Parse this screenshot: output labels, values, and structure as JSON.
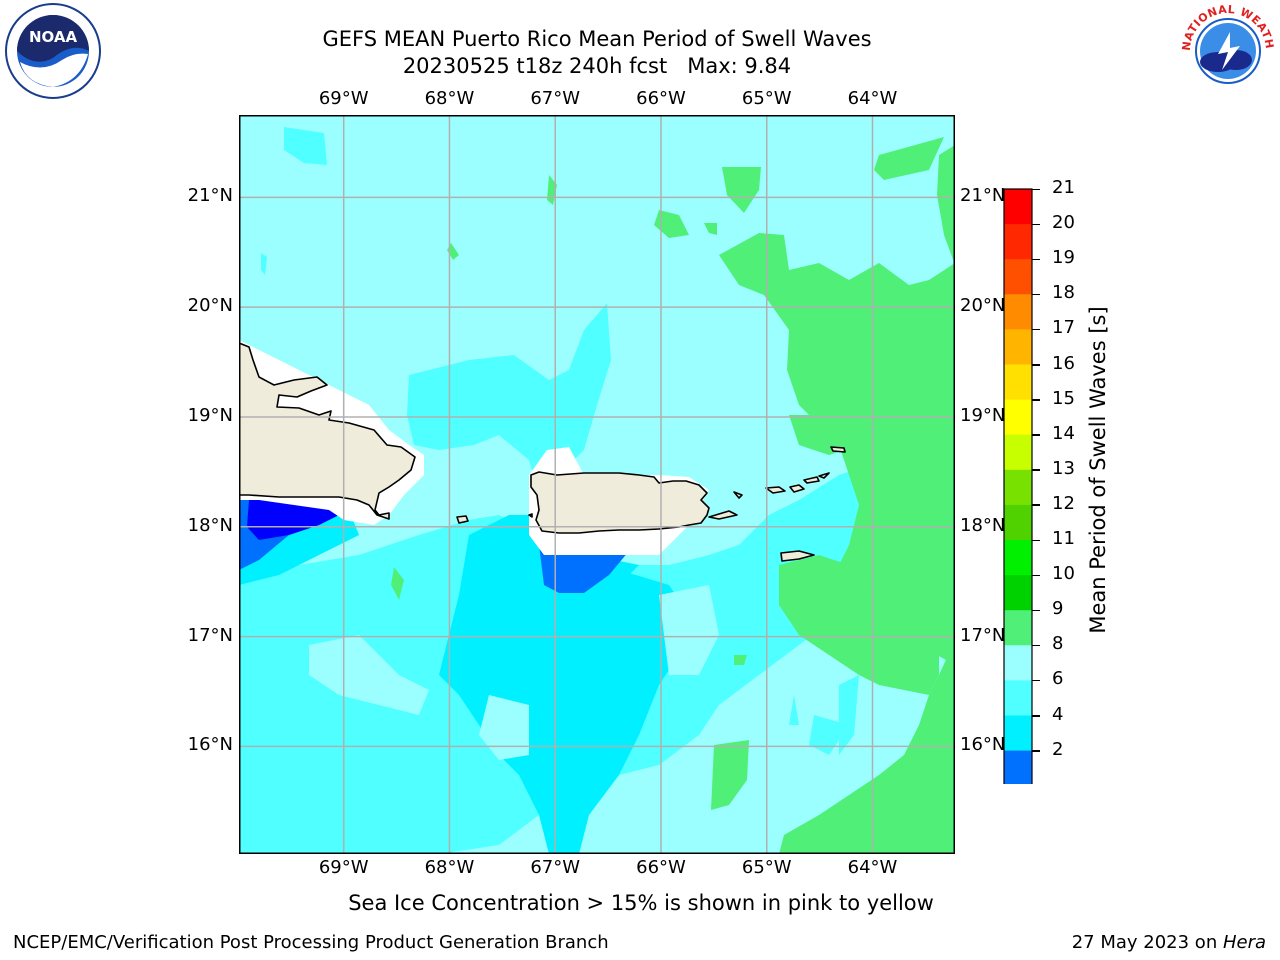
{
  "title": {
    "line1": "GEFS MEAN Puerto Rico Mean Period of Swell Waves",
    "line2": "20230525 t18z 240h fcst   Max: 9.84"
  },
  "axes": {
    "lon_labels": [
      "69°W",
      "68°W",
      "67°W",
      "66°W",
      "65°W",
      "64°W"
    ],
    "lat_labels_left": [
      "21°N",
      "20°N",
      "19°N",
      "18°N",
      "17°N",
      "16°N"
    ],
    "lat_labels_right": [
      "21°N",
      "20°N",
      "19°N",
      "18°N",
      "17°N",
      "16°N"
    ],
    "lon_range": [
      -69.99,
      -63.22
    ],
    "lat_range": [
      15.02,
      21.75
    ],
    "grid": true
  },
  "colorbar": {
    "label": "Mean Period of Swell Waves [s]",
    "ticks": [
      "21",
      "20",
      "19",
      "18",
      "17",
      "16",
      "15",
      "14",
      "13",
      "12",
      "11",
      "10",
      "9",
      "8",
      "6",
      "4",
      "2"
    ],
    "levels": [
      2,
      4,
      6,
      8,
      9,
      10,
      11,
      12,
      13,
      14,
      15,
      16,
      17,
      18,
      19,
      20,
      21
    ],
    "colors": [
      "#0070ff",
      "#00f0ff",
      "#50ffff",
      "#9cffff",
      "#50f078",
      "#00d200",
      "#00f000",
      "#50d200",
      "#78e100",
      "#c8ff00",
      "#ffff00",
      "#ffe000",
      "#ffb400",
      "#ff8c00",
      "#ff5000",
      "#ff2800",
      "#ff0000"
    ],
    "under_color": "#0000ff",
    "extend": "min"
  },
  "legend_note": "Sea Ice Concentration > 15% is shown in pink to yellow",
  "footer": {
    "left": "NCEP/EMC/Verification Post Processing Product Generation Branch",
    "date": "27 May 2023 on ",
    "host": "Hera"
  },
  "logos": {
    "left": "NOAA",
    "right": "NATIONAL WEATHER SERVICE"
  },
  "colors": {
    "land": "#efecdc",
    "grid": "#b0b0b0",
    "ocean_base": "#9cffff"
  }
}
